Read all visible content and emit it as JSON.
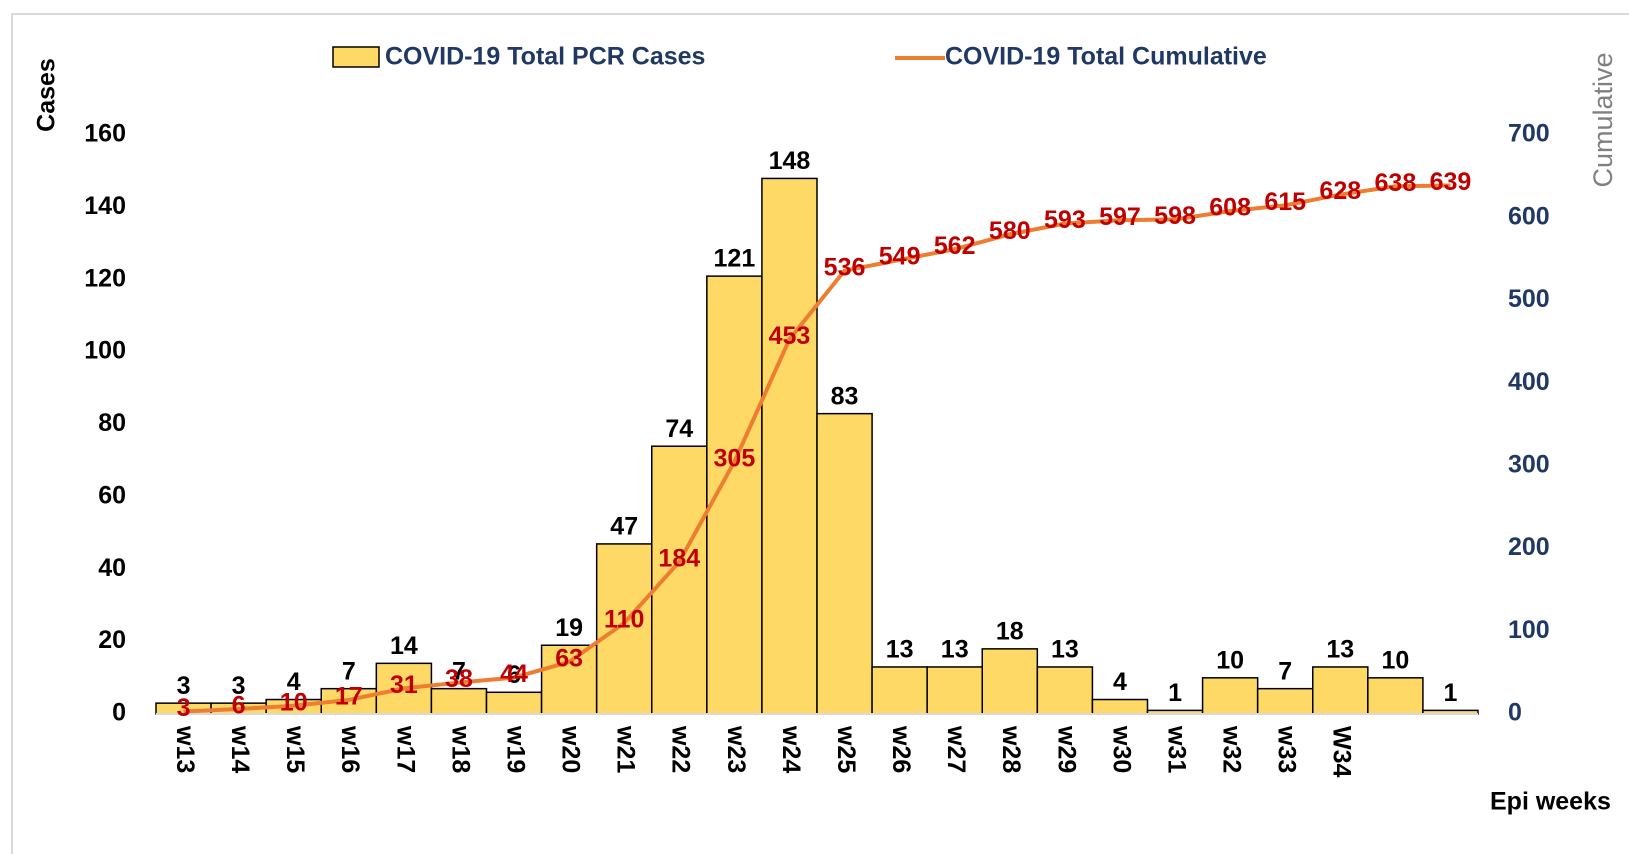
{
  "chart_data": {
    "type": "bar_line",
    "y_label": "Cases",
    "y2_label": "Cumulative",
    "x_label": "Epi weeks",
    "categories": [
      "w13",
      "w14",
      "w15",
      "w16",
      "w17",
      "w18",
      "w19",
      "w20",
      "w21",
      "w22",
      "w23",
      "w24",
      "w25",
      "w26",
      "w27",
      "w28",
      "w29",
      "w30",
      "w31",
      "w32",
      "w33",
      "W34",
      null,
      null
    ],
    "series": [
      {
        "name": "COVID-19 Total PCR Cases",
        "type": "bar",
        "color": "#FFD966",
        "values": [
          3,
          3,
          4,
          7,
          14,
          7,
          6,
          19,
          47,
          74,
          121,
          148,
          83,
          13,
          13,
          18,
          13,
          4,
          1,
          10,
          7,
          13,
          10,
          1
        ]
      },
      {
        "name": "COVID-19 Total Cumulative",
        "type": "line",
        "axis": "y2",
        "color": "#ED7D31",
        "values": [
          3,
          6,
          10,
          17,
          31,
          38,
          44,
          63,
          110,
          184,
          305,
          453,
          536,
          549,
          562,
          580,
          593,
          597,
          598,
          608,
          615,
          628,
          638,
          639
        ]
      }
    ],
    "ylim": [
      0,
      160
    ],
    "yticks": [
      0,
      20,
      40,
      60,
      80,
      100,
      120,
      140,
      160
    ],
    "y2lim": [
      0,
      700
    ],
    "y2ticks": [
      0,
      100,
      200,
      300,
      400,
      500,
      600,
      700
    ]
  }
}
